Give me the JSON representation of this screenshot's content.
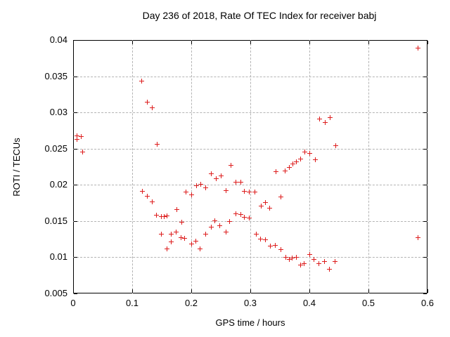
{
  "title": "Day 236 of 2018, Rate Of TEC Index for receiver babj",
  "colors": {
    "marker": "#dd1c1c",
    "grid": "#b4b4b4",
    "border": "#000000",
    "background": "#ffffff",
    "text": "#000000"
  },
  "chart_data": {
    "type": "scatter",
    "title": "Day 236 of 2018, Rate Of TEC Index for receiver babj",
    "xlabel": "GPS time / hours",
    "ylabel": "ROTI / TECUs",
    "xlim": [
      0,
      0.6
    ],
    "ylim": [
      0.005,
      0.04
    ],
    "xticks": [
      0,
      0.1,
      0.2,
      0.3,
      0.4,
      0.5,
      0.6
    ],
    "xtick_labels": [
      "0",
      "0.1",
      "0.2",
      "0.3",
      "0.4",
      "0.5",
      "0.6"
    ],
    "yticks": [
      0.005,
      0.01,
      0.015,
      0.02,
      0.025,
      0.03,
      0.035,
      0.04
    ],
    "ytick_labels": [
      "0.005",
      "0.01",
      "0.015",
      "0.02",
      "0.025",
      "0.03",
      "0.035",
      "0.04"
    ],
    "grid": true,
    "legend": "none",
    "marker": "plus",
    "points": [
      [
        0.007,
        0.0267
      ],
      [
        0.007,
        0.0262
      ],
      [
        0.014,
        0.0266
      ],
      [
        0.017,
        0.0245
      ],
      [
        0.117,
        0.0343
      ],
      [
        0.126,
        0.0314
      ],
      [
        0.134,
        0.0306
      ],
      [
        0.143,
        0.0256
      ],
      [
        0.118,
        0.0191
      ],
      [
        0.126,
        0.0184
      ],
      [
        0.134,
        0.0176
      ],
      [
        0.142,
        0.0158
      ],
      [
        0.15,
        0.0156
      ],
      [
        0.155,
        0.0156
      ],
      [
        0.16,
        0.0157
      ],
      [
        0.176,
        0.0165
      ],
      [
        0.185,
        0.0148
      ],
      [
        0.192,
        0.019
      ],
      [
        0.201,
        0.0186
      ],
      [
        0.209,
        0.0198
      ],
      [
        0.217,
        0.02
      ],
      [
        0.225,
        0.0195
      ],
      [
        0.234,
        0.0215
      ],
      [
        0.243,
        0.0208
      ],
      [
        0.251,
        0.0212
      ],
      [
        0.259,
        0.0192
      ],
      [
        0.268,
        0.0226
      ],
      [
        0.276,
        0.0203
      ],
      [
        0.284,
        0.0203
      ],
      [
        0.291,
        0.0191
      ],
      [
        0.299,
        0.019
      ],
      [
        0.308,
        0.019
      ],
      [
        0.319,
        0.017
      ],
      [
        0.326,
        0.0175
      ],
      [
        0.333,
        0.0167
      ],
      [
        0.352,
        0.0183
      ],
      [
        0.344,
        0.0218
      ],
      [
        0.36,
        0.0219
      ],
      [
        0.367,
        0.0224
      ],
      [
        0.373,
        0.0228
      ],
      [
        0.379,
        0.0231
      ],
      [
        0.386,
        0.0235
      ],
      [
        0.393,
        0.0245
      ],
      [
        0.401,
        0.0243
      ],
      [
        0.411,
        0.0234
      ],
      [
        0.418,
        0.029
      ],
      [
        0.427,
        0.0286
      ],
      [
        0.436,
        0.0292
      ],
      [
        0.445,
        0.0254
      ],
      [
        0.15,
        0.0131
      ],
      [
        0.159,
        0.0111
      ],
      [
        0.167,
        0.0131
      ],
      [
        0.167,
        0.0121
      ],
      [
        0.175,
        0.0134
      ],
      [
        0.183,
        0.0127
      ],
      [
        0.189,
        0.0126
      ],
      [
        0.201,
        0.0118
      ],
      [
        0.208,
        0.0122
      ],
      [
        0.216,
        0.0111
      ],
      [
        0.225,
        0.0131
      ],
      [
        0.234,
        0.0141
      ],
      [
        0.241,
        0.015
      ],
      [
        0.249,
        0.0143
      ],
      [
        0.259,
        0.0134
      ],
      [
        0.266,
        0.0149
      ],
      [
        0.276,
        0.016
      ],
      [
        0.284,
        0.0159
      ],
      [
        0.291,
        0.0155
      ],
      [
        0.299,
        0.0154
      ],
      [
        0.311,
        0.0131
      ],
      [
        0.318,
        0.0125
      ],
      [
        0.326,
        0.0124
      ],
      [
        0.335,
        0.0115
      ],
      [
        0.343,
        0.0116
      ],
      [
        0.352,
        0.011
      ],
      [
        0.361,
        0.0099
      ],
      [
        0.367,
        0.0097
      ],
      [
        0.372,
        0.0098
      ],
      [
        0.378,
        0.0099
      ],
      [
        0.386,
        0.0089
      ],
      [
        0.392,
        0.0091
      ],
      [
        0.401,
        0.0103
      ],
      [
        0.408,
        0.0097
      ],
      [
        0.417,
        0.0091
      ],
      [
        0.426,
        0.0094
      ],
      [
        0.435,
        0.0083
      ],
      [
        0.444,
        0.0094
      ],
      [
        0.585,
        0.0388
      ],
      [
        0.585,
        0.0127
      ]
    ]
  }
}
